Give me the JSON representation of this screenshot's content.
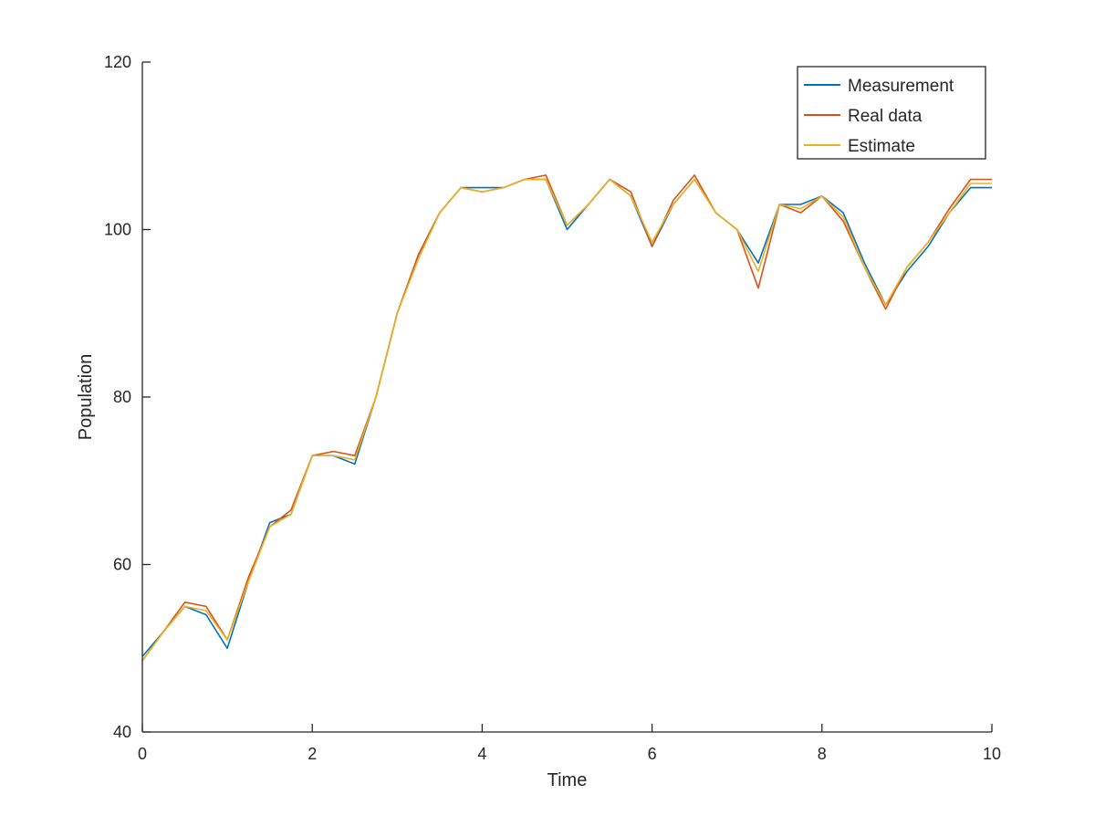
{
  "chart_data": {
    "type": "line",
    "title": "",
    "xlabel": "Time",
    "ylabel": "Population",
    "xlim": [
      0,
      10
    ],
    "ylim": [
      40,
      120
    ],
    "xticks": [
      0,
      2,
      4,
      6,
      8,
      10
    ],
    "xtick_labels": [
      "0",
      "2",
      "4",
      "6",
      "8",
      "10"
    ],
    "yticks": [
      40,
      60,
      80,
      100,
      120
    ],
    "ytick_labels": [
      "40",
      "60",
      "80",
      "100",
      "120"
    ],
    "grid": false,
    "legend_position": "top-right",
    "x": [
      0,
      0.25,
      0.5,
      0.75,
      1,
      1.25,
      1.5,
      1.75,
      2,
      2.25,
      2.5,
      2.75,
      3,
      3.25,
      3.5,
      3.75,
      4,
      4.25,
      4.5,
      4.75,
      5,
      5.25,
      5.5,
      5.75,
      6,
      6.25,
      6.5,
      6.75,
      7,
      7.25,
      7.5,
      7.75,
      8,
      8.25,
      8.5,
      8.75,
      9,
      9.25,
      9.5,
      9.75,
      10
    ],
    "series": [
      {
        "name": "Measurement",
        "color": "#0072BD",
        "values": [
          49,
          52,
          55,
          54,
          50,
          58,
          65,
          66,
          73,
          73,
          72,
          80,
          90,
          97,
          102,
          105,
          105,
          105,
          106,
          106,
          100,
          103,
          106,
          104,
          98,
          103,
          106,
          102,
          100,
          96,
          103,
          103,
          104,
          102,
          96,
          91,
          95,
          98,
          102,
          105,
          105
        ]
      },
      {
        "name": "Real data",
        "color": "#D95319",
        "values": [
          48.5,
          52,
          55.5,
          55,
          51,
          58.5,
          64.5,
          66.5,
          73,
          73.5,
          73,
          80,
          90,
          97,
          102,
          105,
          104.5,
          105,
          106,
          106.5,
          100.5,
          103,
          106,
          104.5,
          98,
          103.5,
          106.5,
          102,
          100,
          93,
          103,
          102,
          104,
          101,
          95.5,
          90.5,
          95.5,
          98.5,
          102.5,
          106,
          106
        ]
      },
      {
        "name": "Estimate",
        "color": "#EDB120",
        "values": [
          48.5,
          52,
          55,
          54.5,
          51,
          58,
          64.5,
          66,
          73,
          73,
          72.5,
          80,
          90,
          96.5,
          102,
          105,
          104.5,
          105,
          106,
          106,
          100.5,
          103,
          106,
          104,
          98.5,
          103,
          106,
          102,
          100,
          95,
          103,
          102.5,
          104,
          101.5,
          95.5,
          91,
          95.5,
          98.5,
          102,
          105.5,
          105.5
        ]
      }
    ]
  }
}
